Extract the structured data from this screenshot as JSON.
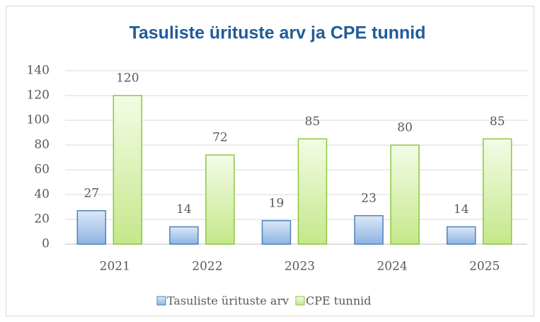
{
  "chart_data": {
    "type": "bar",
    "title": "Tasuliste ürituste arv ja CPE tunnid",
    "categories": [
      "2021",
      "2022",
      "2023",
      "2024",
      "2025"
    ],
    "series": [
      {
        "name": "Tasuliste ürituste arv",
        "color": "#8db3e2",
        "values": [
          27,
          14,
          19,
          23,
          14
        ]
      },
      {
        "name": "CPE tunnid",
        "color": "#c4e88a",
        "values": [
          120,
          72,
          85,
          80,
          85
        ]
      }
    ],
    "ylim": [
      0,
      140
    ],
    "yticks": [
      0,
      20,
      40,
      60,
      80,
      100,
      120,
      140
    ],
    "grid": true,
    "legend": "bottom"
  }
}
